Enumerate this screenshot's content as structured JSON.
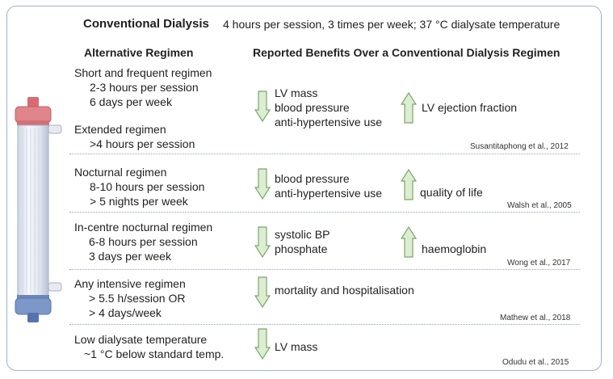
{
  "top": {
    "title": "Conventional Dialysis",
    "description": "4 hours per session, 3 times per week; 37 °C dialysate temperature"
  },
  "columns": {
    "left": "Alternative Regimen",
    "right": "Reported Benefits Over a Conventional Dialysis Regimen"
  },
  "colors": {
    "border": "#9fb0d0",
    "arrow_fill": "#dcedd1",
    "arrow_stroke": "#7aa66a",
    "cap_red": "#e0868a",
    "cap_blue": "#7e97c9"
  },
  "rows": [
    {
      "regimen": [
        "Short and frequent regimen",
        "2-3 hours per session",
        "6 days per week"
      ],
      "regimen2": [
        "Extended regimen",
        ">4 hours per session"
      ],
      "decreased": [
        "LV mass",
        "blood pressure",
        "anti-hypertensive use"
      ],
      "increased": [
        "LV ejection fraction"
      ],
      "citation": "Susantitaphong et al., 2012"
    },
    {
      "regimen": [
        "Nocturnal regimen",
        "8-10 hours per session",
        "> 5 nights per week"
      ],
      "decreased": [
        "blood pressure",
        "anti-hypertensive use"
      ],
      "increased": [
        "quality of life"
      ],
      "citation": "Walsh et al., 2005"
    },
    {
      "regimen": [
        "In-centre nocturnal regimen",
        "6-8 hours per session",
        "3 days per week"
      ],
      "decreased": [
        "systolic BP",
        "phosphate"
      ],
      "increased": [
        "haemoglobin"
      ],
      "citation": "Wong et al., 2017"
    },
    {
      "regimen": [
        "Any intensive regimen",
        "> 5.5 h/session OR",
        "> 4 days/week"
      ],
      "decreased": [
        "mortality and hospitalisation"
      ],
      "increased": [],
      "citation": "Mathew et al., 2018"
    },
    {
      "regimen": [
        "Low dialysate temperature",
        "~1 °C below standard temp."
      ],
      "decreased": [
        "LV mass"
      ],
      "increased": [],
      "citation": "Odudu et al., 2015"
    }
  ]
}
